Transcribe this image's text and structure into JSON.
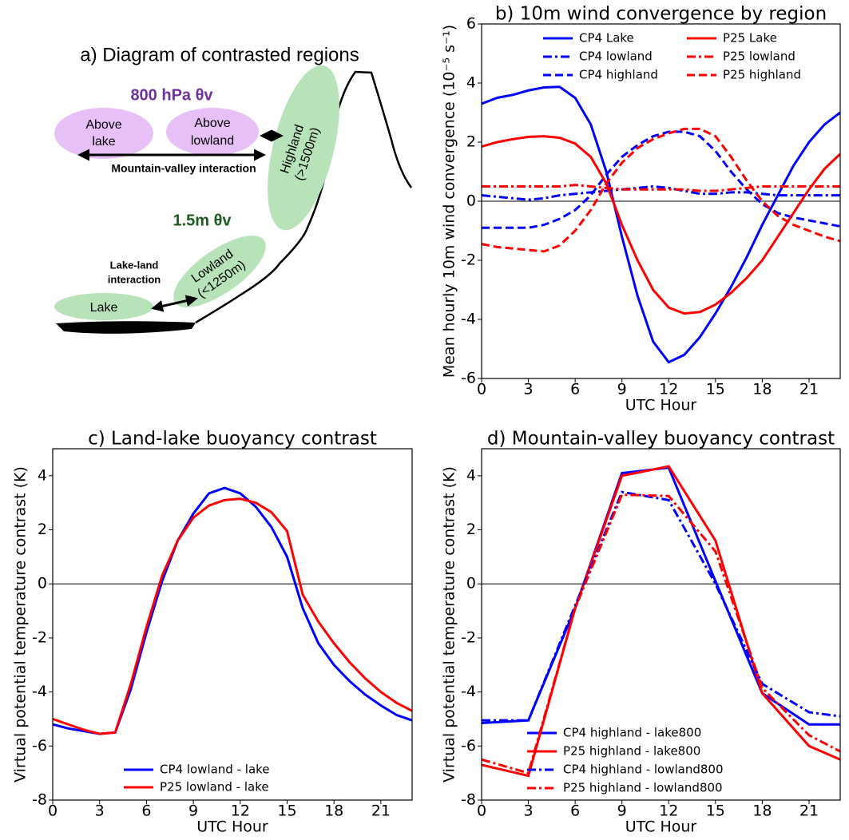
{
  "diagram": {
    "title": "a) Diagram of contrasted regions",
    "upper_label": "800 hPa θv",
    "above_lake": [
      "Above",
      "lake"
    ],
    "above_lowland": [
      "Above",
      "lowland"
    ],
    "highland": [
      "Highland",
      "(>1500m)"
    ],
    "mountain_valley": "Mountain-valley interaction",
    "lower_label": "1.5m θv",
    "lake_land": [
      "Lake-land",
      "interaction"
    ],
    "lowland": [
      "Lowland",
      "(<1250m)"
    ],
    "lake": "Lake"
  },
  "chart_data": [
    {
      "type": "line",
      "title": "b) 10m wind convergence by region",
      "x_label": "UTC Hour",
      "y_label": "Mean hourly 10m wind convergence (10⁻⁵ s⁻¹)",
      "x": [
        0,
        1,
        2,
        3,
        4,
        5,
        6,
        7,
        8,
        9,
        10,
        11,
        12,
        13,
        14,
        15,
        16,
        17,
        18,
        19,
        20,
        21,
        22,
        23
      ],
      "xlim": [
        0,
        23
      ],
      "xticks": [
        0,
        3,
        6,
        9,
        12,
        15,
        18,
        21
      ],
      "ylim": [
        -6,
        6
      ],
      "yticks": [
        -6,
        -4,
        -2,
        0,
        2,
        4,
        6
      ],
      "zero_line": true,
      "legend": "upper center",
      "series": [
        {
          "name": "CP4 Lake",
          "color": "#0000ff",
          "linestyle": "solid",
          "values": [
            3.3,
            3.5,
            3.6,
            3.75,
            3.85,
            3.87,
            3.5,
            2.6,
            1.0,
            -1.2,
            -3.2,
            -4.75,
            -5.45,
            -5.2,
            -4.6,
            -3.8,
            -2.9,
            -1.9,
            -0.8,
            0.2,
            1.2,
            2.0,
            2.6,
            3.0
          ]
        },
        {
          "name": "CP4 lowland",
          "color": "#0000ff",
          "linestyle": "dashdot",
          "values": [
            0.2,
            0.15,
            0.1,
            0.05,
            0.1,
            0.2,
            0.25,
            0.3,
            0.35,
            0.4,
            0.45,
            0.5,
            0.45,
            0.35,
            0.25,
            0.25,
            0.3,
            0.3,
            0.25,
            0.2,
            0.2,
            0.2,
            0.2,
            0.2
          ]
        },
        {
          "name": "CP4 highland",
          "color": "#0000ff",
          "linestyle": "dashed",
          "values": [
            -0.9,
            -0.9,
            -0.9,
            -0.9,
            -0.8,
            -0.6,
            -0.3,
            0.2,
            0.9,
            1.5,
            1.9,
            2.2,
            2.35,
            2.35,
            2.2,
            1.7,
            1.0,
            0.4,
            -0.1,
            -0.4,
            -0.55,
            -0.65,
            -0.75,
            -0.85
          ]
        },
        {
          "name": "P25 Lake",
          "color": "#ff0000",
          "linestyle": "solid",
          "values": [
            1.85,
            2.0,
            2.1,
            2.18,
            2.2,
            2.15,
            1.95,
            1.5,
            0.6,
            -0.8,
            -2.0,
            -3.0,
            -3.6,
            -3.8,
            -3.75,
            -3.5,
            -3.1,
            -2.6,
            -2.0,
            -1.2,
            -0.4,
            0.4,
            1.1,
            1.6
          ]
        },
        {
          "name": "P25 lowland",
          "color": "#ff0000",
          "linestyle": "dashdot",
          "values": [
            0.5,
            0.5,
            0.5,
            0.5,
            0.5,
            0.5,
            0.55,
            0.5,
            0.45,
            0.4,
            0.4,
            0.4,
            0.4,
            0.4,
            0.35,
            0.35,
            0.4,
            0.45,
            0.5,
            0.5,
            0.5,
            0.5,
            0.5,
            0.5
          ]
        },
        {
          "name": "P25 highland",
          "color": "#ff0000",
          "linestyle": "dashed",
          "values": [
            -1.45,
            -1.55,
            -1.6,
            -1.65,
            -1.7,
            -1.5,
            -1.0,
            -0.3,
            0.6,
            1.3,
            1.8,
            2.1,
            2.3,
            2.45,
            2.45,
            2.2,
            1.5,
            0.7,
            0.0,
            -0.5,
            -0.8,
            -1.0,
            -1.2,
            -1.35
          ]
        }
      ]
    },
    {
      "type": "line",
      "title": "c) Land-lake buoyancy contrast",
      "x_label": "UTC Hour",
      "y_label": "Virtual potential temperature contrast (K)",
      "x": [
        0,
        1,
        2,
        3,
        4,
        5,
        6,
        7,
        8,
        9,
        10,
        11,
        12,
        13,
        14,
        15,
        16,
        17,
        18,
        19,
        20,
        21,
        22,
        23
      ],
      "xlim": [
        0,
        23
      ],
      "xticks": [
        0,
        3,
        6,
        9,
        12,
        15,
        18,
        21
      ],
      "ylim": [
        -8,
        5
      ],
      "yticks": [
        -8,
        -6,
        -4,
        -2,
        0,
        2,
        4
      ],
      "zero_line": true,
      "legend": "lower center",
      "series": [
        {
          "name": "CP4 lowland - lake",
          "color": "#0000ff",
          "linestyle": "solid",
          "values": [
            -5.2,
            -5.35,
            -5.45,
            -5.55,
            -5.5,
            -3.9,
            -1.8,
            0.1,
            1.6,
            2.6,
            3.35,
            3.55,
            3.35,
            2.85,
            2.1,
            1.0,
            -0.9,
            -2.2,
            -3.0,
            -3.6,
            -4.1,
            -4.5,
            -4.85,
            -5.05
          ]
        },
        {
          "name": "P25 lowland - lake",
          "color": "#ff0000",
          "linestyle": "solid",
          "values": [
            -5.0,
            -5.2,
            -5.4,
            -5.55,
            -5.5,
            -3.7,
            -1.6,
            0.3,
            1.6,
            2.45,
            2.9,
            3.1,
            3.15,
            3.0,
            2.65,
            1.95,
            -0.4,
            -1.4,
            -2.2,
            -2.9,
            -3.5,
            -4.0,
            -4.4,
            -4.7
          ]
        }
      ]
    },
    {
      "type": "line",
      "title": "d) Mountain-valley buoyancy contrast",
      "x_label": "UTC Hour",
      "y_label": "Virtual potential temperature contrast (K)",
      "x": [
        0,
        3,
        6,
        9,
        12,
        15,
        18,
        21,
        23
      ],
      "xlim": [
        0,
        23
      ],
      "xticks": [
        0,
        3,
        6,
        9,
        12,
        15,
        18,
        21
      ],
      "ylim": [
        -8,
        5
      ],
      "yticks": [
        -8,
        -6,
        -4,
        -2,
        0,
        2,
        4
      ],
      "zero_line": true,
      "legend": "lower center",
      "series": [
        {
          "name": "CP4 highland - lake800",
          "color": "#0000ff",
          "linestyle": "solid",
          "values": [
            -5.15,
            -5.05,
            -0.9,
            4.1,
            4.3,
            0.1,
            -4.05,
            -5.2,
            -5.2
          ]
        },
        {
          "name": "P25 highland - lake800",
          "color": "#ff0000",
          "linestyle": "solid",
          "values": [
            -6.7,
            -7.1,
            -0.9,
            4.0,
            4.35,
            1.6,
            -4.05,
            -6.0,
            -6.5
          ]
        },
        {
          "name": "CP4 highland - lowland800",
          "color": "#0000ff",
          "linestyle": "dashdot",
          "values": [
            -5.05,
            -5.05,
            -0.8,
            3.4,
            3.1,
            0.0,
            -3.7,
            -4.75,
            -4.9
          ]
        },
        {
          "name": "P25 highland - lowland800",
          "color": "#ff0000",
          "linestyle": "dashdot",
          "values": [
            -6.5,
            -7.0,
            -0.9,
            3.3,
            3.25,
            1.2,
            -3.85,
            -5.6,
            -6.2
          ]
        }
      ]
    }
  ]
}
